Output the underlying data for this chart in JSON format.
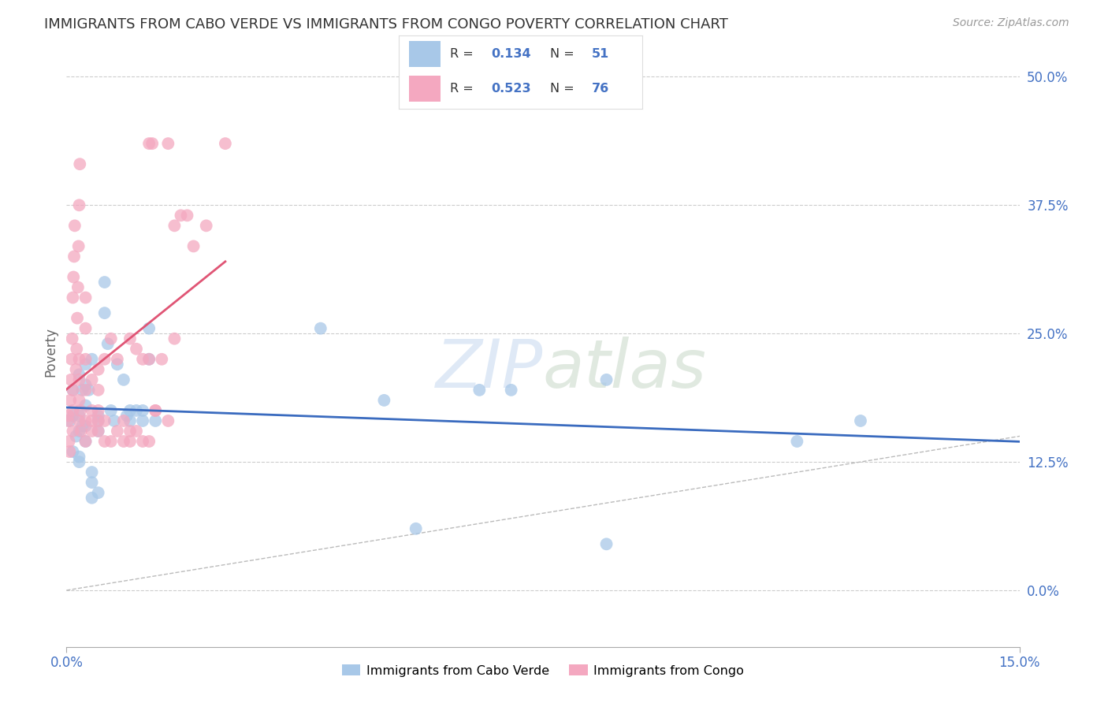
{
  "title": "IMMIGRANTS FROM CABO VERDE VS IMMIGRANTS FROM CONGO POVERTY CORRELATION CHART",
  "source": "Source: ZipAtlas.com",
  "ylabel_label": "Poverty",
  "xmin": 0.0,
  "xmax": 0.15,
  "ymin": -0.055,
  "ymax": 0.52,
  "cabo_verde_color": "#a8c8e8",
  "congo_color": "#f4a8c0",
  "cabo_verde_line_color": "#3a6bbf",
  "congo_line_color": "#e05575",
  "watermark_zip": "ZIP",
  "watermark_atlas": "atlas",
  "cabo_verde_points": [
    [
      0.0005,
      0.165
    ],
    [
      0.001,
      0.17
    ],
    [
      0.001,
      0.135
    ],
    [
      0.001,
      0.195
    ],
    [
      0.0015,
      0.15
    ],
    [
      0.002,
      0.155
    ],
    [
      0.002,
      0.13
    ],
    [
      0.002,
      0.125
    ],
    [
      0.002,
      0.17
    ],
    [
      0.002,
      0.21
    ],
    [
      0.0025,
      0.195
    ],
    [
      0.003,
      0.2
    ],
    [
      0.003,
      0.22
    ],
    [
      0.003,
      0.145
    ],
    [
      0.003,
      0.16
    ],
    [
      0.0035,
      0.195
    ],
    [
      0.004,
      0.09
    ],
    [
      0.004,
      0.105
    ],
    [
      0.004,
      0.115
    ],
    [
      0.004,
      0.225
    ],
    [
      0.005,
      0.165
    ],
    [
      0.005,
      0.17
    ],
    [
      0.005,
      0.095
    ],
    [
      0.005,
      0.155
    ],
    [
      0.006,
      0.27
    ],
    [
      0.006,
      0.3
    ],
    [
      0.0065,
      0.24
    ],
    [
      0.007,
      0.175
    ],
    [
      0.0075,
      0.165
    ],
    [
      0.008,
      0.22
    ],
    [
      0.009,
      0.205
    ],
    [
      0.0095,
      0.17
    ],
    [
      0.01,
      0.165
    ],
    [
      0.01,
      0.175
    ],
    [
      0.011,
      0.175
    ],
    [
      0.012,
      0.175
    ],
    [
      0.012,
      0.165
    ],
    [
      0.013,
      0.255
    ],
    [
      0.013,
      0.225
    ],
    [
      0.014,
      0.165
    ],
    [
      0.04,
      0.255
    ],
    [
      0.05,
      0.185
    ],
    [
      0.055,
      0.06
    ],
    [
      0.065,
      0.195
    ],
    [
      0.07,
      0.195
    ],
    [
      0.085,
      0.205
    ],
    [
      0.085,
      0.045
    ],
    [
      0.115,
      0.145
    ],
    [
      0.0025,
      0.16
    ],
    [
      0.003,
      0.18
    ],
    [
      0.125,
      0.165
    ]
  ],
  "congo_points": [
    [
      0.0002,
      0.165
    ],
    [
      0.0003,
      0.17
    ],
    [
      0.0004,
      0.145
    ],
    [
      0.0005,
      0.135
    ],
    [
      0.0006,
      0.185
    ],
    [
      0.0007,
      0.205
    ],
    [
      0.0008,
      0.225
    ],
    [
      0.0009,
      0.245
    ],
    [
      0.001,
      0.285
    ],
    [
      0.0011,
      0.305
    ],
    [
      0.0012,
      0.325
    ],
    [
      0.0013,
      0.355
    ],
    [
      0.001,
      0.155
    ],
    [
      0.001,
      0.175
    ],
    [
      0.001,
      0.195
    ],
    [
      0.0015,
      0.215
    ],
    [
      0.0016,
      0.235
    ],
    [
      0.0017,
      0.265
    ],
    [
      0.0018,
      0.295
    ],
    [
      0.0019,
      0.335
    ],
    [
      0.002,
      0.375
    ],
    [
      0.0021,
      0.415
    ],
    [
      0.002,
      0.165
    ],
    [
      0.002,
      0.185
    ],
    [
      0.002,
      0.205
    ],
    [
      0.002,
      0.225
    ],
    [
      0.0022,
      0.175
    ],
    [
      0.0023,
      0.155
    ],
    [
      0.003,
      0.145
    ],
    [
      0.003,
      0.165
    ],
    [
      0.003,
      0.195
    ],
    [
      0.003,
      0.225
    ],
    [
      0.003,
      0.255
    ],
    [
      0.003,
      0.285
    ],
    [
      0.004,
      0.155
    ],
    [
      0.004,
      0.175
    ],
    [
      0.004,
      0.205
    ],
    [
      0.004,
      0.165
    ],
    [
      0.005,
      0.155
    ],
    [
      0.005,
      0.175
    ],
    [
      0.005,
      0.195
    ],
    [
      0.005,
      0.215
    ],
    [
      0.005,
      0.165
    ],
    [
      0.006,
      0.165
    ],
    [
      0.006,
      0.225
    ],
    [
      0.006,
      0.145
    ],
    [
      0.007,
      0.245
    ],
    [
      0.007,
      0.145
    ],
    [
      0.008,
      0.225
    ],
    [
      0.008,
      0.155
    ],
    [
      0.009,
      0.165
    ],
    [
      0.009,
      0.145
    ],
    [
      0.01,
      0.245
    ],
    [
      0.01,
      0.155
    ],
    [
      0.01,
      0.145
    ],
    [
      0.011,
      0.235
    ],
    [
      0.011,
      0.155
    ],
    [
      0.012,
      0.225
    ],
    [
      0.012,
      0.145
    ],
    [
      0.013,
      0.225
    ],
    [
      0.013,
      0.145
    ],
    [
      0.013,
      0.435
    ],
    [
      0.0135,
      0.435
    ],
    [
      0.014,
      0.175
    ],
    [
      0.014,
      0.175
    ],
    [
      0.015,
      0.225
    ],
    [
      0.016,
      0.165
    ],
    [
      0.016,
      0.435
    ],
    [
      0.017,
      0.245
    ],
    [
      0.017,
      0.355
    ],
    [
      0.018,
      0.365
    ],
    [
      0.019,
      0.365
    ],
    [
      0.02,
      0.335
    ],
    [
      0.022,
      0.355
    ],
    [
      0.025,
      0.435
    ]
  ],
  "ytick_vals": [
    0.0,
    0.125,
    0.25,
    0.375,
    0.5
  ],
  "ytick_labels": [
    "0.0%",
    "12.5%",
    "25.0%",
    "37.5%",
    "50.0%"
  ],
  "xtick_vals": [
    0.0,
    0.15
  ],
  "xtick_labels": [
    "0.0%",
    "15.0%"
  ]
}
